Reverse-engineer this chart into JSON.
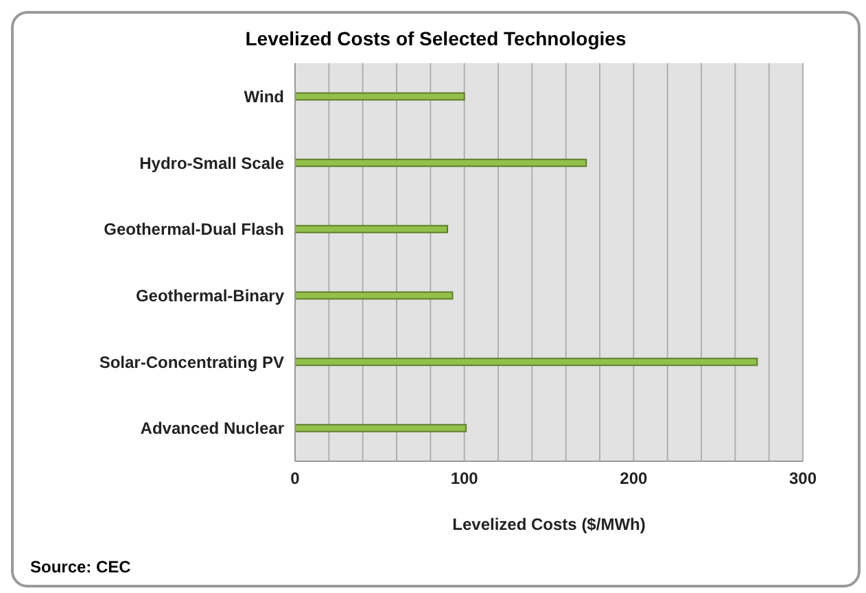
{
  "chart_data": {
    "type": "bar",
    "orientation": "horizontal",
    "title": "Levelized Costs of Selected Technologies",
    "xlabel": "Levelized Costs ($/MWh)",
    "categories": [
      "Wind",
      "Hydro-Small Scale",
      "Geothermal-Dual Flash",
      "Geothermal-Binary",
      "Solar-Concentrating PV",
      "Advanced Nuclear"
    ],
    "values": [
      100,
      172,
      90,
      93,
      273,
      101
    ],
    "color": "#92c04a",
    "xlim": [
      0,
      300
    ],
    "xticks": [
      0,
      {
        "value": 20,
        "label": null
      },
      {
        "value": 40,
        "label": null
      },
      {
        "value": 60,
        "label": null
      },
      {
        "value": 80,
        "label": null
      },
      100,
      {
        "value": 120,
        "label": null
      },
      {
        "value": 140,
        "label": null
      },
      {
        "value": 160,
        "label": null
      },
      {
        "value": 180,
        "label": null
      },
      200,
      {
        "value": 220,
        "label": null
      },
      {
        "value": 240,
        "label": null
      },
      {
        "value": 260,
        "label": null
      },
      {
        "value": 280,
        "label": null
      },
      300
    ],
    "grid": "x",
    "legend": false,
    "annotations": [
      "Source: CEC"
    ]
  }
}
